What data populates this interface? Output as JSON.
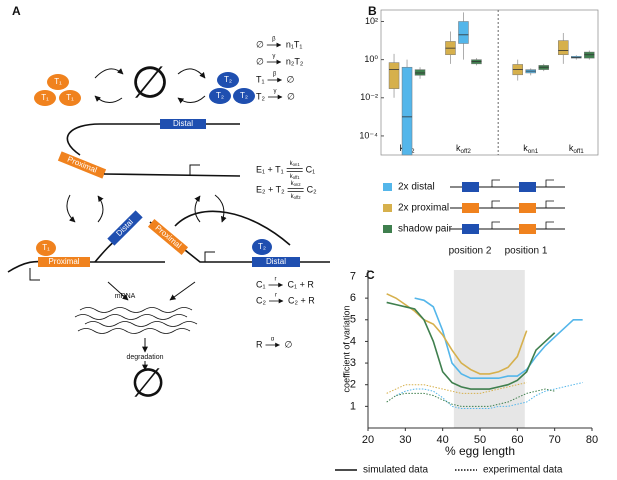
{
  "diagram": {
    "label": "A",
    "species_pool": {
      "t1": [
        "T₁",
        "T₁",
        "T₁"
      ],
      "t2": [
        "T₂",
        "T₂",
        "T₂"
      ],
      "null": "∅"
    },
    "unbound": {
      "distal": "Distal",
      "proximal": "Proximal"
    },
    "bound_left": {
      "proximal": "Proximal",
      "distal": "Distal",
      "tf": "T₁"
    },
    "bound_right": {
      "proximal": "Proximal",
      "distal": "Distal",
      "tf": "T₂"
    },
    "mrna": "mRNA",
    "degradation": "degradation",
    "sink": "∅",
    "reactions": [
      {
        "lhs": "∅",
        "rate": "β",
        "rhs": "n₁T₁"
      },
      {
        "lhs": "∅",
        "rate": "γ",
        "rhs": "n₂T₂"
      },
      {
        "lhs": "T₁",
        "rate": "β",
        "rhs": "∅"
      },
      {
        "lhs": "T₂",
        "rate": "γ",
        "rhs": "∅"
      },
      {
        "lhs": "E₁ + T₁",
        "fwd": {
          "base": "k",
          "sub": "on1"
        },
        "rev": {
          "base": "k",
          "sub": "off1"
        },
        "rhs": "C₁"
      },
      {
        "lhs": "E₂ + T₂",
        "fwd": {
          "base": "k",
          "sub": "on2"
        },
        "rev": {
          "base": "k",
          "sub": "off2"
        },
        "rhs": "C₂"
      },
      {
        "lhs": "C₁",
        "rate": "r",
        "rhs": "C₁ + R"
      },
      {
        "lhs": "C₂",
        "rate": "r",
        "rhs": "C₂ + R"
      },
      {
        "lhs": "R",
        "rate": "α",
        "rhs": "∅"
      }
    ]
  },
  "chart_data": [
    {
      "type": "box",
      "panel_label": "B",
      "log_scale": true,
      "divider": true,
      "categories": [
        {
          "base": "k",
          "sub": "on2"
        },
        {
          "base": "k",
          "sub": "off2"
        },
        {
          "base": "k",
          "sub": "on1"
        },
        {
          "base": "k",
          "sub": "off1"
        }
      ],
      "ylim": [
        1e-05,
        400
      ],
      "yticks": [
        {
          "value": 100,
          "label": "10²"
        },
        {
          "value": 1,
          "label": "10⁰"
        },
        {
          "value": 0.01,
          "label": "10⁻²"
        },
        {
          "value": 0.0001,
          "label": "10⁻⁴"
        }
      ],
      "series": [
        {
          "name": "2x proximal",
          "color": "#d6b04c",
          "boxes": [
            {
              "whisker_low": 0.01,
              "q1": 0.03,
              "median": 0.3,
              "q3": 0.7,
              "whisker_high": 2
            },
            {
              "whisker_low": 0.6,
              "q1": 1.8,
              "median": 4,
              "q3": 9,
              "whisker_high": 30
            },
            {
              "whisker_low": 0.08,
              "q1": 0.16,
              "median": 0.3,
              "q3": 0.56,
              "whisker_high": 1
            },
            {
              "whisker_low": 0.6,
              "q1": 1.8,
              "median": 3,
              "q3": 10,
              "whisker_high": 25
            }
          ]
        },
        {
          "name": "2x distal",
          "color": "#54b6ea",
          "boxes": [
            {
              "whisker_low": 1e-05,
              "q1": 1e-05,
              "median": 0.001,
              "q3": 0.4,
              "whisker_high": 1
            },
            {
              "whisker_low": 1,
              "q1": 7,
              "median": 20,
              "q3": 100,
              "whisker_high": 300
            },
            {
              "whisker_low": 0.15,
              "q1": 0.2,
              "median": 0.25,
              "q3": 0.3,
              "whisker_high": 0.35
            },
            {
              "whisker_low": 1,
              "q1": 1.2,
              "median": 1.3,
              "q3": 1.5,
              "whisker_high": 1.7
            }
          ]
        },
        {
          "name": "shadow pair",
          "color": "#3f7f4e",
          "boxes": [
            {
              "whisker_low": 0.1,
              "q1": 0.15,
              "median": 0.2,
              "q3": 0.3,
              "whisker_high": 0.4
            },
            {
              "whisker_low": 0.5,
              "q1": 0.6,
              "median": 0.8,
              "q3": 1,
              "whisker_high": 1.2
            },
            {
              "whisker_low": 0.25,
              "q1": 0.3,
              "median": 0.4,
              "q3": 0.5,
              "whisker_high": 0.6
            },
            {
              "whisker_low": 1,
              "q1": 1.2,
              "median": 1.8,
              "q3": 2.5,
              "whisker_high": 3
            }
          ]
        }
      ],
      "legend_order": [
        1,
        0,
        2
      ],
      "positions": [
        "position 2",
        "position 1"
      ]
    },
    {
      "type": "line",
      "panel_label": "C",
      "xlabel": "% egg length",
      "ylabel": "coefficient of variation",
      "xlim": [
        20,
        80
      ],
      "xticks": [
        20,
        30,
        40,
        50,
        60,
        70,
        80
      ],
      "ylim": [
        0,
        7.3
      ],
      "yticks": [
        1,
        2,
        3,
        4,
        5,
        6,
        7
      ],
      "shaded_region": [
        43,
        62
      ],
      "x": [
        25,
        27.5,
        30,
        32.5,
        35,
        37.5,
        40,
        42.5,
        45,
        47.5,
        50,
        52.5,
        55,
        57.5,
        60,
        62.5,
        65,
        67.5,
        70,
        72.5,
        75,
        77.5
      ],
      "series": [
        {
          "color": "#54b6ea",
          "dash": "solid",
          "values": [
            null,
            null,
            null,
            6.0,
            5.9,
            5.6,
            4.5,
            3.0,
            2.5,
            2.3,
            2.3,
            2.3,
            2.3,
            2.4,
            2.4,
            2.7,
            3.3,
            3.8,
            4.2,
            4.6,
            5.0,
            5.0
          ]
        },
        {
          "color": "#d6b04c",
          "dash": "solid",
          "values": [
            6.2,
            6.0,
            5.7,
            5.4,
            5.0,
            4.8,
            4.3,
            3.6,
            3.0,
            2.7,
            2.5,
            2.5,
            2.6,
            2.8,
            3.3,
            4.5,
            null,
            null,
            null,
            null,
            null,
            null
          ]
        },
        {
          "color": "#3f7f4e",
          "dash": "solid",
          "values": [
            5.8,
            5.7,
            5.6,
            5.5,
            5.0,
            4.0,
            2.6,
            2.1,
            1.9,
            1.8,
            1.8,
            1.8,
            1.9,
            2.0,
            2.2,
            2.6,
            3.6,
            4.0,
            4.4,
            null,
            null,
            null
          ]
        },
        {
          "color": "#54b6ea",
          "dash": "dotted",
          "values": [
            null,
            1.5,
            1.7,
            1.8,
            1.8,
            1.7,
            1.4,
            1.0,
            0.9,
            0.9,
            0.9,
            0.9,
            1.0,
            1.0,
            1.1,
            1.2,
            1.5,
            1.7,
            1.8,
            1.9,
            2.0,
            2.1
          ]
        },
        {
          "color": "#d6b04c",
          "dash": "dotted",
          "values": [
            1.6,
            1.8,
            2.0,
            2.0,
            2.0,
            1.9,
            1.8,
            1.7,
            1.6,
            1.6,
            1.6,
            1.7,
            1.8,
            1.9,
            2.0,
            2.1,
            null,
            null,
            null,
            null,
            null,
            null
          ]
        },
        {
          "color": "#3f7f4e",
          "dash": "dotted",
          "values": [
            1.2,
            1.5,
            1.6,
            1.6,
            1.6,
            1.5,
            1.3,
            1.1,
            1.0,
            1.0,
            1.0,
            1.0,
            1.1,
            1.2,
            1.4,
            1.6,
            1.7,
            1.8,
            1.7,
            null,
            null,
            null
          ]
        }
      ],
      "legend": [
        {
          "label": "simulated data",
          "dash": "solid"
        },
        {
          "label": "experimental data",
          "dash": "dotted"
        }
      ]
    }
  ]
}
